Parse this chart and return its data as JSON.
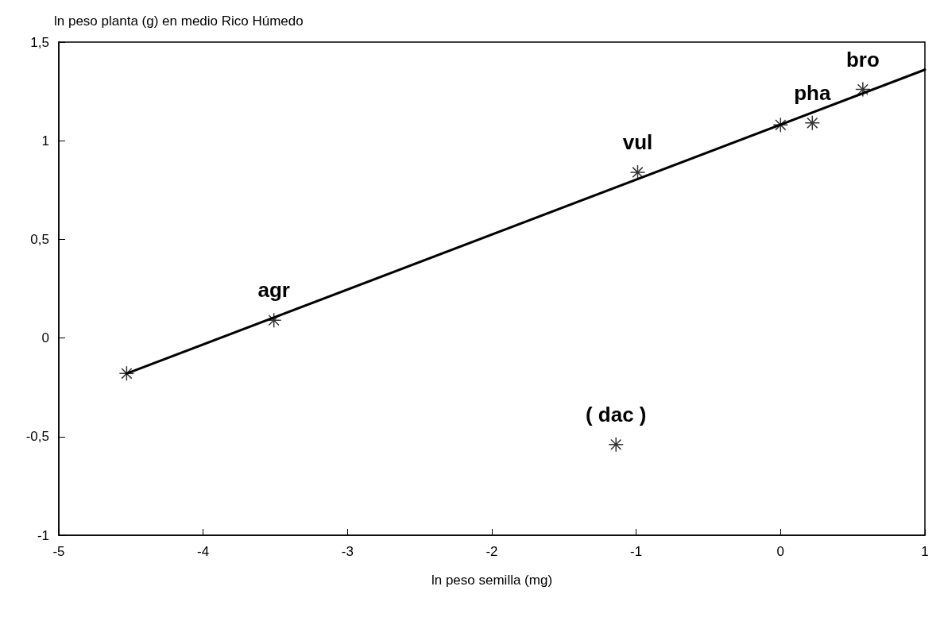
{
  "chart_data": {
    "type": "scatter",
    "ylabel": "ln peso planta (g) en medio Rico Húmedo",
    "xlabel": "ln peso semilla (mg)",
    "xlim": [
      -5,
      1
    ],
    "xticks": [
      -5,
      -4,
      -3,
      -2,
      -1,
      0,
      1
    ],
    "ylim": [
      -1,
      1.5
    ],
    "yticks": [
      -1,
      {
        "value": -0.5,
        "label": "-0,5"
      },
      0,
      {
        "value": 0.5,
        "label": "0,5"
      },
      1,
      {
        "value": 1.5,
        "label": "1,5"
      }
    ],
    "series": [
      {
        "type": "line",
        "color": "#000000",
        "marker": "none",
        "x": [
          -4.53,
          1
        ],
        "values": [
          -0.18,
          1.36
        ]
      },
      {
        "color": "#000000",
        "marker": "cross",
        "x": [
          -4.53,
          -3.51,
          -0.99,
          0,
          0.22,
          0.57,
          -1.14
        ],
        "values": [
          -0.18,
          0.09,
          0.84,
          1.08,
          1.09,
          1.26,
          -0.54
        ]
      }
    ],
    "annotations": [
      {
        "text": "agr",
        "x": -3.51,
        "y": 0.09
      },
      {
        "text": "vul",
        "x": -0.99,
        "y": 0.84
      },
      {
        "text": "bro",
        "x": 0.57,
        "y": 1.26
      },
      {
        "text": "pha",
        "x": 0.22,
        "y": 1.09
      },
      {
        "text": "( dac )",
        "x": -1.14,
        "y": -0.54
      }
    ]
  }
}
